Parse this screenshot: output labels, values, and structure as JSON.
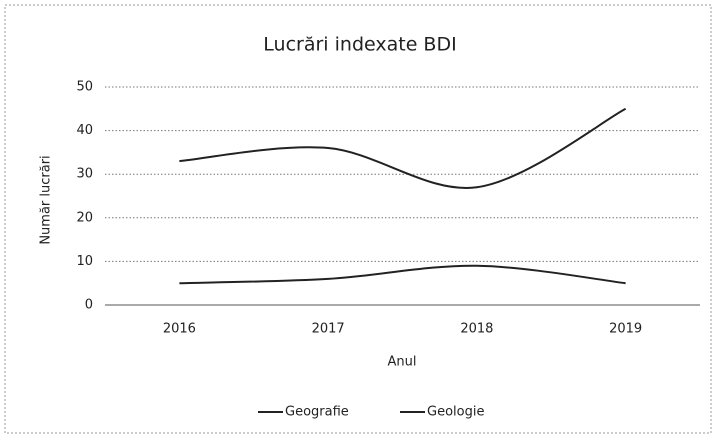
{
  "chart_data": {
    "type": "line",
    "title": "Lucrări indexate BDI",
    "x_label": "Anul",
    "y_label": "Număr lucrări",
    "categories": [
      "2016",
      "2017",
      "2018",
      "2019"
    ],
    "series": [
      {
        "name": "Geografie",
        "color": "#222222",
        "values": [
          33,
          36,
          27,
          45
        ]
      },
      {
        "name": "Geologie",
        "color": "#222222",
        "values": [
          5,
          6,
          9,
          5
        ]
      }
    ],
    "ylim": [
      0,
      50
    ],
    "yticks": [
      0,
      10,
      20,
      30,
      40,
      50
    ],
    "grid": true,
    "smooth": true,
    "legend": "bottom"
  }
}
